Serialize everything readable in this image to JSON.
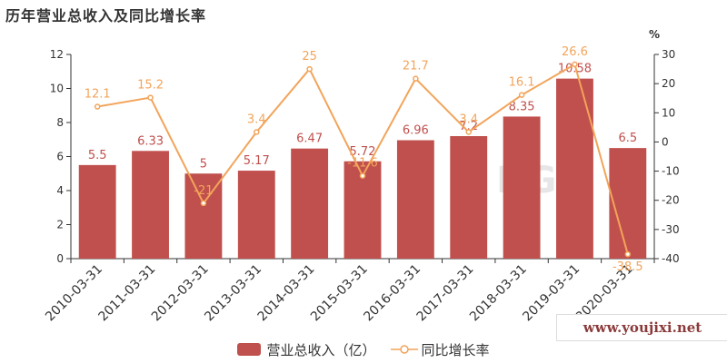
{
  "title": "历年营业总收入及同比增长率",
  "right_axis_unit": "%",
  "watermark": "www.youjixi.net",
  "colors": {
    "bar": "#c0504d",
    "line": "#f2a45a",
    "bar_label": "#c0504d",
    "line_label": "#f2a45a",
    "axis": "#333333"
  },
  "chart_data": {
    "type": "bar",
    "categories": [
      "2010-03-31",
      "2011-03-31",
      "2012-03-31",
      "2013-03-31",
      "2014-03-31",
      "2015-03-31",
      "2016-03-31",
      "2017-03-31",
      "2018-03-31",
      "2019-03-31",
      "2020-03-31"
    ],
    "series": [
      {
        "name": "营业总收入（亿）",
        "type": "bar",
        "axis": "left",
        "values": [
          5.5,
          6.33,
          5,
          5.17,
          6.47,
          5.72,
          6.96,
          7.2,
          8.35,
          10.58,
          6.5
        ],
        "labels": [
          "5.5",
          "6.33",
          "5",
          "5.17",
          "6.47",
          "5.72",
          "6.96",
          "7.2",
          "8.35",
          "10.58",
          "6.5"
        ]
      },
      {
        "name": "同比增长率",
        "type": "line",
        "axis": "right",
        "values": [
          12.1,
          15.2,
          -21,
          3.4,
          25,
          -11.6,
          21.7,
          3.4,
          16.1,
          26.6,
          -38.5
        ],
        "labels": [
          "12.1",
          "15.2",
          "-21",
          "3.4",
          "25",
          "-11.6",
          "21.7",
          "3.4",
          "16.1",
          "26.6",
          "-38.5"
        ]
      }
    ],
    "y_left": {
      "range": [
        0,
        12
      ],
      "ticks": [
        0,
        2,
        4,
        6,
        8,
        10,
        12
      ]
    },
    "y_right": {
      "range": [
        -40,
        30
      ],
      "ticks": [
        -40,
        -30,
        -20,
        -10,
        0,
        10,
        20,
        30
      ]
    },
    "grid": false,
    "legend": "bottom-center"
  }
}
